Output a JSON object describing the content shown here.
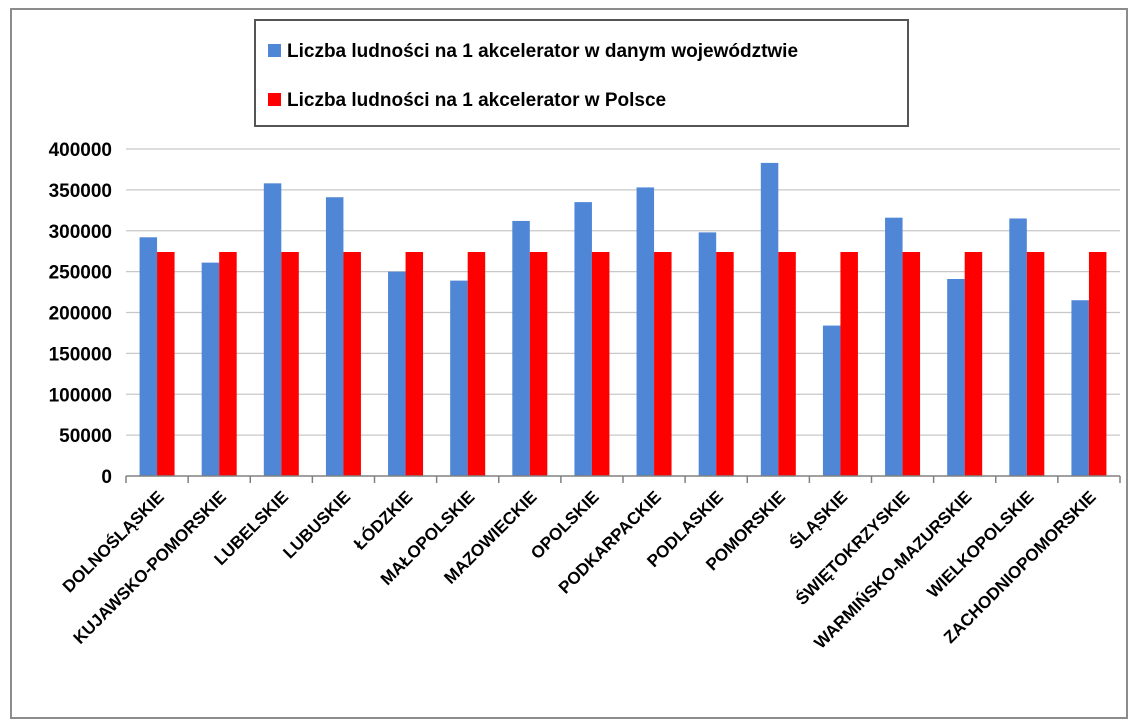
{
  "chart_data": {
    "type": "bar",
    "categories": [
      "DOLNOŚLĄSKIE",
      "KUJAWSKO-POMORSKIE",
      "LUBELSKIE",
      "LUBUSKIE",
      "ŁÓDZKIE",
      "MAŁOPOLSKIE",
      "MAZOWIECKIE",
      "OPOLSKIE",
      "PODKARPACKIE",
      "PODLASKIE",
      "POMORSKIE",
      "ŚLĄSKIE",
      "ŚWIĘTOKRZYSKIE",
      "WARMIŃSKO-MAZURSKIE",
      "WIELKOPOLSKIE",
      "ZACHODNIOPOMORSKIE"
    ],
    "series": [
      {
        "name": "Liczba ludności na 1 akcelerator w danym województwie",
        "color": "#4f86d5",
        "values": [
          292000,
          261000,
          358000,
          341000,
          250000,
          239000,
          312000,
          335000,
          353000,
          298000,
          383000,
          184000,
          316000,
          241000,
          315000,
          215000
        ]
      },
      {
        "name": "Liczba ludności na 1 akcelerator w Polsce",
        "color": "#ff0000",
        "values": [
          274000,
          274000,
          274000,
          274000,
          274000,
          274000,
          274000,
          274000,
          274000,
          274000,
          274000,
          274000,
          274000,
          274000,
          274000,
          274000
        ]
      }
    ],
    "yticks": [
      "0",
      "50000",
      "100000",
      "150000",
      "200000",
      "250000",
      "300000",
      "350000",
      "400000"
    ],
    "ylim": [
      0,
      400000
    ],
    "grid": true,
    "legend_position": "top"
  }
}
